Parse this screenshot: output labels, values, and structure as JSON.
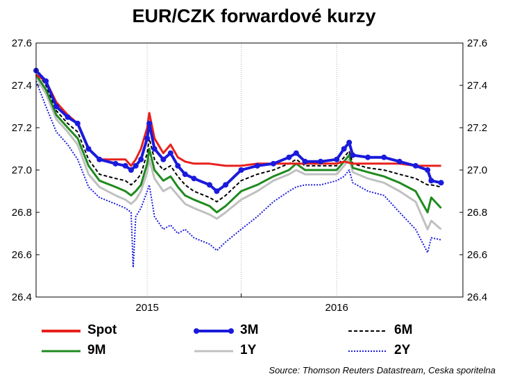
{
  "title": "EUR/CZK forwardové kurzy",
  "source": "Source: Thomson Reuters Datastream, Ceska sporitelna",
  "chart_data": {
    "type": "line",
    "title": "EUR/CZK forwardové kurzy",
    "xlabel": "",
    "ylabel": "",
    "ylim": [
      26.4,
      27.6
    ],
    "yticks": [
      "26.4",
      "26.6",
      "26.8",
      "27.0",
      "27.2",
      "27.4",
      "27.6"
    ],
    "xlim": [
      "2014-06-01",
      "2016-08-31"
    ],
    "xticks": [
      {
        "label": "2015",
        "date": "2015-01-01",
        "tick": false
      },
      {
        "label": "",
        "date": "2015-07-01",
        "tick": true
      },
      {
        "label": "2016",
        "date": "2016-01-01",
        "tick": false
      }
    ],
    "grid": "vertical dotted",
    "legend": "bottom",
    "series": [
      {
        "name": "Spot",
        "color": "#e8201c",
        "style": "solid",
        "points": [
          [
            "2014-06-01",
            27.45
          ],
          [
            "2014-06-20",
            27.42
          ],
          [
            "2014-07-10",
            27.32
          ],
          [
            "2014-08-01",
            27.26
          ],
          [
            "2014-08-20",
            27.22
          ],
          [
            "2014-09-10",
            27.1
          ],
          [
            "2014-10-01",
            27.05
          ],
          [
            "2014-11-01",
            27.05
          ],
          [
            "2014-11-20",
            27.05
          ],
          [
            "2014-12-01",
            27.02
          ],
          [
            "2014-12-10",
            27.05
          ],
          [
            "2014-12-20",
            27.1
          ],
          [
            "2015-01-01",
            27.2
          ],
          [
            "2015-01-05",
            27.27
          ],
          [
            "2015-01-15",
            27.15
          ],
          [
            "2015-02-01",
            27.08
          ],
          [
            "2015-02-15",
            27.12
          ],
          [
            "2015-03-01",
            27.06
          ],
          [
            "2015-03-15",
            27.04
          ],
          [
            "2015-04-01",
            27.03
          ],
          [
            "2015-05-01",
            27.03
          ],
          [
            "2015-06-01",
            27.02
          ],
          [
            "2015-07-01",
            27.02
          ],
          [
            "2015-08-01",
            27.03
          ],
          [
            "2015-09-01",
            27.03
          ],
          [
            "2015-10-01",
            27.03
          ],
          [
            "2015-11-01",
            27.03
          ],
          [
            "2015-12-01",
            27.03
          ],
          [
            "2016-01-01",
            27.03
          ],
          [
            "2016-01-15",
            27.04
          ],
          [
            "2016-02-01",
            27.03
          ],
          [
            "2016-03-01",
            27.03
          ],
          [
            "2016-04-01",
            27.03
          ],
          [
            "2016-05-01",
            27.03
          ],
          [
            "2016-06-01",
            27.02
          ],
          [
            "2016-06-24",
            27.02
          ],
          [
            "2016-07-01",
            27.02
          ],
          [
            "2016-07-20",
            27.02
          ]
        ]
      },
      {
        "name": "3M",
        "color": "#1a1adc",
        "style": "solid-dots",
        "points": [
          [
            "2014-06-01",
            27.47
          ],
          [
            "2014-06-20",
            27.42
          ],
          [
            "2014-07-10",
            27.3
          ],
          [
            "2014-08-01",
            27.25
          ],
          [
            "2014-08-20",
            27.22
          ],
          [
            "2014-09-10",
            27.1
          ],
          [
            "2014-10-01",
            27.05
          ],
          [
            "2014-11-01",
            27.03
          ],
          [
            "2014-11-20",
            27.02
          ],
          [
            "2014-12-01",
            27.0
          ],
          [
            "2014-12-10",
            27.02
          ],
          [
            "2014-12-20",
            27.05
          ],
          [
            "2015-01-01",
            27.15
          ],
          [
            "2015-01-05",
            27.22
          ],
          [
            "2015-01-15",
            27.1
          ],
          [
            "2015-02-01",
            27.05
          ],
          [
            "2015-02-15",
            27.08
          ],
          [
            "2015-03-01",
            27.02
          ],
          [
            "2015-03-15",
            26.98
          ],
          [
            "2015-04-01",
            26.96
          ],
          [
            "2015-05-01",
            26.93
          ],
          [
            "2015-05-15",
            26.9
          ],
          [
            "2015-06-01",
            26.93
          ],
          [
            "2015-07-01",
            27.0
          ],
          [
            "2015-08-01",
            27.02
          ],
          [
            "2015-09-01",
            27.03
          ],
          [
            "2015-10-01",
            27.06
          ],
          [
            "2015-10-15",
            27.08
          ],
          [
            "2015-11-01",
            27.04
          ],
          [
            "2015-12-01",
            27.04
          ],
          [
            "2016-01-01",
            27.05
          ],
          [
            "2016-01-15",
            27.1
          ],
          [
            "2016-01-25",
            27.13
          ],
          [
            "2016-02-01",
            27.07
          ],
          [
            "2016-03-01",
            27.06
          ],
          [
            "2016-04-01",
            27.06
          ],
          [
            "2016-05-01",
            27.04
          ],
          [
            "2016-06-01",
            27.02
          ],
          [
            "2016-06-24",
            27.0
          ],
          [
            "2016-07-01",
            26.95
          ],
          [
            "2016-07-20",
            26.94
          ]
        ]
      },
      {
        "name": "6M",
        "color": "#000000",
        "style": "dashed",
        "points": [
          [
            "2014-06-01",
            27.47
          ],
          [
            "2014-06-20",
            27.4
          ],
          [
            "2014-07-10",
            27.28
          ],
          [
            "2014-08-01",
            27.22
          ],
          [
            "2014-08-20",
            27.18
          ],
          [
            "2014-09-10",
            27.05
          ],
          [
            "2014-10-01",
            26.98
          ],
          [
            "2014-11-01",
            26.96
          ],
          [
            "2014-11-20",
            26.95
          ],
          [
            "2014-12-01",
            26.93
          ],
          [
            "2014-12-10",
            26.95
          ],
          [
            "2014-12-20",
            26.98
          ],
          [
            "2015-01-01",
            27.08
          ],
          [
            "2015-01-05",
            27.15
          ],
          [
            "2015-01-15",
            27.05
          ],
          [
            "2015-02-01",
            27.0
          ],
          [
            "2015-02-15",
            27.02
          ],
          [
            "2015-03-01",
            26.97
          ],
          [
            "2015-03-15",
            26.93
          ],
          [
            "2015-04-01",
            26.9
          ],
          [
            "2015-05-01",
            26.87
          ],
          [
            "2015-05-15",
            26.85
          ],
          [
            "2015-06-01",
            26.88
          ],
          [
            "2015-07-01",
            26.95
          ],
          [
            "2015-08-01",
            26.98
          ],
          [
            "2015-09-01",
            27.0
          ],
          [
            "2015-10-01",
            27.03
          ],
          [
            "2015-10-15",
            27.05
          ],
          [
            "2015-11-01",
            27.02
          ],
          [
            "2015-12-01",
            27.02
          ],
          [
            "2016-01-01",
            27.02
          ],
          [
            "2016-01-15",
            27.06
          ],
          [
            "2016-01-25",
            27.09
          ],
          [
            "2016-02-01",
            27.03
          ],
          [
            "2016-03-01",
            27.01
          ],
          [
            "2016-04-01",
            27.0
          ],
          [
            "2016-05-01",
            26.98
          ],
          [
            "2016-06-01",
            26.96
          ],
          [
            "2016-06-24",
            26.93
          ],
          [
            "2016-07-01",
            26.93
          ],
          [
            "2016-07-20",
            26.92
          ]
        ]
      },
      {
        "name": "9M",
        "color": "#1f8a1f",
        "style": "solid",
        "points": [
          [
            "2014-06-01",
            27.45
          ],
          [
            "2014-06-20",
            27.38
          ],
          [
            "2014-07-10",
            27.26
          ],
          [
            "2014-08-01",
            27.2
          ],
          [
            "2014-08-20",
            27.15
          ],
          [
            "2014-09-10",
            27.02
          ],
          [
            "2014-10-01",
            26.95
          ],
          [
            "2014-11-01",
            26.92
          ],
          [
            "2014-11-20",
            26.9
          ],
          [
            "2014-12-01",
            26.88
          ],
          [
            "2014-12-10",
            26.9
          ],
          [
            "2014-12-20",
            26.93
          ],
          [
            "2015-01-01",
            27.03
          ],
          [
            "2015-01-05",
            27.1
          ],
          [
            "2015-01-15",
            27.0
          ],
          [
            "2015-02-01",
            26.95
          ],
          [
            "2015-02-15",
            26.97
          ],
          [
            "2015-03-01",
            26.92
          ],
          [
            "2015-03-15",
            26.88
          ],
          [
            "2015-04-01",
            26.86
          ],
          [
            "2015-05-01",
            26.83
          ],
          [
            "2015-05-15",
            26.8
          ],
          [
            "2015-06-01",
            26.83
          ],
          [
            "2015-07-01",
            26.9
          ],
          [
            "2015-08-01",
            26.93
          ],
          [
            "2015-09-01",
            26.97
          ],
          [
            "2015-10-01",
            27.0
          ],
          [
            "2015-10-15",
            27.03
          ],
          [
            "2015-11-01",
            27.0
          ],
          [
            "2015-12-01",
            27.0
          ],
          [
            "2016-01-01",
            27.0
          ],
          [
            "2016-01-15",
            27.04
          ],
          [
            "2016-01-25",
            27.07
          ],
          [
            "2016-02-01",
            27.01
          ],
          [
            "2016-03-01",
            26.99
          ],
          [
            "2016-04-01",
            26.97
          ],
          [
            "2016-05-01",
            26.94
          ],
          [
            "2016-06-01",
            26.9
          ],
          [
            "2016-06-24",
            26.8
          ],
          [
            "2016-07-01",
            26.87
          ],
          [
            "2016-07-20",
            26.82
          ]
        ]
      },
      {
        "name": "1Y",
        "color": "#c0c0c0",
        "style": "solid",
        "points": [
          [
            "2014-06-01",
            27.44
          ],
          [
            "2014-06-20",
            27.36
          ],
          [
            "2014-07-10",
            27.24
          ],
          [
            "2014-08-01",
            27.18
          ],
          [
            "2014-08-20",
            27.12
          ],
          [
            "2014-09-10",
            26.98
          ],
          [
            "2014-10-01",
            26.92
          ],
          [
            "2014-11-01",
            26.88
          ],
          [
            "2014-11-20",
            26.86
          ],
          [
            "2014-12-01",
            26.84
          ],
          [
            "2014-12-10",
            26.86
          ],
          [
            "2014-12-20",
            26.9
          ],
          [
            "2015-01-01",
            26.99
          ],
          [
            "2015-01-05",
            27.05
          ],
          [
            "2015-01-15",
            26.96
          ],
          [
            "2015-02-01",
            26.9
          ],
          [
            "2015-02-15",
            26.92
          ],
          [
            "2015-03-01",
            26.88
          ],
          [
            "2015-03-15",
            26.84
          ],
          [
            "2015-04-01",
            26.82
          ],
          [
            "2015-05-01",
            26.79
          ],
          [
            "2015-05-15",
            26.77
          ],
          [
            "2015-06-01",
            26.8
          ],
          [
            "2015-07-01",
            26.86
          ],
          [
            "2015-08-01",
            26.9
          ],
          [
            "2015-09-01",
            26.95
          ],
          [
            "2015-10-01",
            26.98
          ],
          [
            "2015-10-15",
            27.0
          ],
          [
            "2015-11-01",
            26.98
          ],
          [
            "2015-12-01",
            26.98
          ],
          [
            "2016-01-01",
            26.98
          ],
          [
            "2016-01-15",
            27.02
          ],
          [
            "2016-01-25",
            27.05
          ],
          [
            "2016-02-01",
            26.99
          ],
          [
            "2016-03-01",
            26.96
          ],
          [
            "2016-04-01",
            26.94
          ],
          [
            "2016-05-01",
            26.9
          ],
          [
            "2016-06-01",
            26.85
          ],
          [
            "2016-06-24",
            26.72
          ],
          [
            "2016-07-01",
            26.76
          ],
          [
            "2016-07-20",
            26.72
          ]
        ]
      },
      {
        "name": "2Y",
        "color": "#1a1adc",
        "style": "dotted",
        "points": [
          [
            "2014-06-01",
            27.42
          ],
          [
            "2014-06-20",
            27.3
          ],
          [
            "2014-07-10",
            27.18
          ],
          [
            "2014-08-01",
            27.12
          ],
          [
            "2014-08-20",
            27.05
          ],
          [
            "2014-09-10",
            26.92
          ],
          [
            "2014-10-01",
            26.87
          ],
          [
            "2014-11-01",
            26.84
          ],
          [
            "2014-11-20",
            26.82
          ],
          [
            "2014-12-01",
            26.8
          ],
          [
            "2014-12-05",
            26.54
          ],
          [
            "2014-12-10",
            26.78
          ],
          [
            "2014-12-20",
            26.82
          ],
          [
            "2015-01-01",
            26.9
          ],
          [
            "2015-01-05",
            26.93
          ],
          [
            "2015-01-15",
            26.78
          ],
          [
            "2015-02-01",
            26.72
          ],
          [
            "2015-02-15",
            26.74
          ],
          [
            "2015-03-01",
            26.7
          ],
          [
            "2015-03-15",
            26.72
          ],
          [
            "2015-04-01",
            26.68
          ],
          [
            "2015-05-01",
            26.65
          ],
          [
            "2015-05-15",
            26.62
          ],
          [
            "2015-06-01",
            26.66
          ],
          [
            "2015-07-01",
            26.72
          ],
          [
            "2015-08-01",
            26.78
          ],
          [
            "2015-09-01",
            26.85
          ],
          [
            "2015-10-01",
            26.9
          ],
          [
            "2015-10-15",
            26.92
          ],
          [
            "2015-11-01",
            26.93
          ],
          [
            "2015-12-01",
            26.93
          ],
          [
            "2016-01-01",
            26.95
          ],
          [
            "2016-01-15",
            26.97
          ],
          [
            "2016-01-25",
            27.0
          ],
          [
            "2016-02-01",
            26.94
          ],
          [
            "2016-03-01",
            26.9
          ],
          [
            "2016-04-01",
            26.88
          ],
          [
            "2016-05-01",
            26.8
          ],
          [
            "2016-06-01",
            26.72
          ],
          [
            "2016-06-24",
            26.61
          ],
          [
            "2016-07-01",
            26.68
          ],
          [
            "2016-07-20",
            26.67
          ]
        ]
      }
    ]
  }
}
